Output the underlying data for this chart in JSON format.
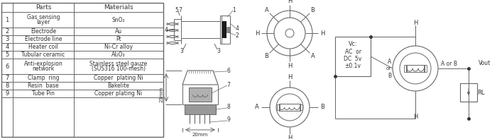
{
  "table_rows": [
    [
      "1",
      "Gas sensing\nlayer",
      "SnO₂"
    ],
    [
      "2",
      "Electrode",
      "Au"
    ],
    [
      "3",
      "Electrode line",
      "Pt"
    ],
    [
      "4",
      "Heater coil",
      "Ni-Cr alloy"
    ],
    [
      "5",
      "Tubular ceramic",
      "Al₂O₃"
    ],
    [
      "6",
      "Anti-explosion\nnetwork",
      "Stainless steel gauze\n(SUS316 100-mesh)"
    ],
    [
      "7",
      "Clamp  ring",
      "Copper  plating Ni"
    ],
    [
      "8",
      "Resin  base",
      "Bakelite"
    ],
    [
      "9",
      "Tube Pin",
      "Copper plating Ni"
    ]
  ],
  "lc": "#666666",
  "tc": "#333333"
}
